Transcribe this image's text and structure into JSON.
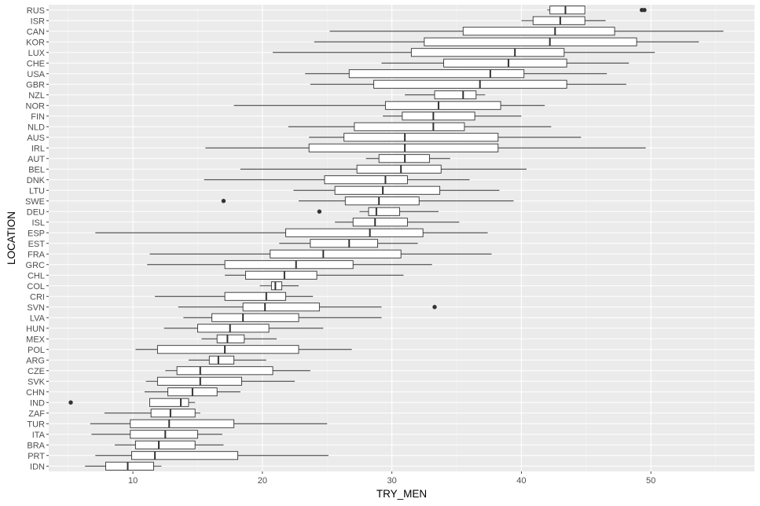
{
  "chart_data": {
    "type": "boxplot",
    "orientation": "horizontal",
    "xlabel": "TRY_MEN",
    "ylabel": "LOCATION",
    "xlim": [
      3.5,
      58
    ],
    "xticks": [
      10,
      20,
      30,
      40,
      50
    ],
    "grid": true,
    "colors": {
      "panel": "#ebebeb",
      "grid_major": "#ffffff",
      "grid_minor": "#f5f5f5",
      "box_fill": "#ffffff",
      "line": "#333333",
      "tick_text": "#4d4d4d"
    },
    "categories": [
      "RUS",
      "ISR",
      "CAN",
      "KOR",
      "LUX",
      "CHE",
      "USA",
      "GBR",
      "NZL",
      "NOR",
      "FIN",
      "NLD",
      "AUS",
      "IRL",
      "AUT",
      "BEL",
      "DNK",
      "LTU",
      "SWE",
      "DEU",
      "ISL",
      "ESP",
      "EST",
      "FRA",
      "GRC",
      "CHL",
      "COL",
      "CRI",
      "SVN",
      "LVA",
      "HUN",
      "MEX",
      "POL",
      "ARG",
      "CZE",
      "SVK",
      "CHN",
      "IND",
      "ZAF",
      "TUR",
      "ITA",
      "BRA",
      "PRT",
      "IDN"
    ],
    "boxes": [
      {
        "location": "RUS",
        "min": 42.0,
        "q1": 42.2,
        "median": 43.4,
        "q3": 44.9,
        "max": 44.9,
        "outliers": [
          49.3,
          49.5
        ]
      },
      {
        "location": "ISR",
        "min": 40.0,
        "q1": 40.9,
        "median": 43.0,
        "q3": 44.9,
        "max": 46.5,
        "outliers": []
      },
      {
        "location": "CAN",
        "min": 25.2,
        "q1": 35.5,
        "median": 42.6,
        "q3": 47.2,
        "max": 55.6,
        "outliers": []
      },
      {
        "location": "KOR",
        "min": 24.0,
        "q1": 32.5,
        "median": 42.2,
        "q3": 48.9,
        "max": 53.7,
        "outliers": []
      },
      {
        "location": "LUX",
        "min": 20.8,
        "q1": 31.5,
        "median": 39.5,
        "q3": 43.3,
        "max": 50.3,
        "outliers": []
      },
      {
        "location": "CHE",
        "min": 29.2,
        "q1": 34.0,
        "median": 39.0,
        "q3": 43.5,
        "max": 48.3,
        "outliers": []
      },
      {
        "location": "USA",
        "min": 23.3,
        "q1": 26.7,
        "median": 37.6,
        "q3": 40.2,
        "max": 46.6,
        "outliers": []
      },
      {
        "location": "GBR",
        "min": 23.7,
        "q1": 28.6,
        "median": 36.8,
        "q3": 43.5,
        "max": 48.1,
        "outliers": []
      },
      {
        "location": "NZL",
        "min": 31.0,
        "q1": 33.3,
        "median": 35.5,
        "q3": 36.5,
        "max": 37.2,
        "outliers": []
      },
      {
        "location": "NOR",
        "min": 17.8,
        "q1": 29.5,
        "median": 33.6,
        "q3": 38.4,
        "max": 41.8,
        "outliers": []
      },
      {
        "location": "FIN",
        "min": 29.3,
        "q1": 30.8,
        "median": 33.2,
        "q3": 36.4,
        "max": 40.0,
        "outliers": []
      },
      {
        "location": "NLD",
        "min": 22.0,
        "q1": 27.1,
        "median": 33.2,
        "q3": 35.6,
        "max": 42.3,
        "outliers": []
      },
      {
        "location": "AUS",
        "min": 23.6,
        "q1": 26.3,
        "median": 31.0,
        "q3": 38.2,
        "max": 44.6,
        "outliers": []
      },
      {
        "location": "IRL",
        "min": 15.6,
        "q1": 23.6,
        "median": 31.0,
        "q3": 38.2,
        "max": 49.6,
        "outliers": []
      },
      {
        "location": "AUT",
        "min": 28.0,
        "q1": 29.0,
        "median": 31.0,
        "q3": 32.9,
        "max": 34.5,
        "outliers": []
      },
      {
        "location": "BEL",
        "min": 18.3,
        "q1": 27.3,
        "median": 30.7,
        "q3": 33.8,
        "max": 40.4,
        "outliers": []
      },
      {
        "location": "DNK",
        "min": 15.5,
        "q1": 24.8,
        "median": 29.5,
        "q3": 31.2,
        "max": 36.0,
        "outliers": []
      },
      {
        "location": "LTU",
        "min": 22.4,
        "q1": 25.6,
        "median": 29.3,
        "q3": 33.7,
        "max": 38.3,
        "outliers": []
      },
      {
        "location": "SWE",
        "min": 22.8,
        "q1": 26.4,
        "median": 29.0,
        "q3": 32.1,
        "max": 39.4,
        "outliers": [
          17.0
        ]
      },
      {
        "location": "DEU",
        "min": 27.5,
        "q1": 28.2,
        "median": 28.8,
        "q3": 30.6,
        "max": 33.6,
        "outliers": [
          24.4
        ]
      },
      {
        "location": "ISL",
        "min": 25.6,
        "q1": 27.0,
        "median": 28.7,
        "q3": 31.2,
        "max": 35.2,
        "outliers": []
      },
      {
        "location": "ESP",
        "min": 7.1,
        "q1": 21.8,
        "median": 28.3,
        "q3": 32.4,
        "max": 37.4,
        "outliers": []
      },
      {
        "location": "EST",
        "min": 21.3,
        "q1": 23.7,
        "median": 26.7,
        "q3": 28.9,
        "max": 32.0,
        "outliers": []
      },
      {
        "location": "FRA",
        "min": 11.3,
        "q1": 20.6,
        "median": 24.7,
        "q3": 30.7,
        "max": 37.7,
        "outliers": []
      },
      {
        "location": "GRC",
        "min": 11.1,
        "q1": 17.1,
        "median": 22.6,
        "q3": 27.0,
        "max": 33.1,
        "outliers": []
      },
      {
        "location": "CHL",
        "min": 17.1,
        "q1": 18.7,
        "median": 21.7,
        "q3": 24.2,
        "max": 30.9,
        "outliers": []
      },
      {
        "location": "COL",
        "min": 19.8,
        "q1": 20.7,
        "median": 21.0,
        "q3": 21.5,
        "max": 22.8,
        "outliers": []
      },
      {
        "location": "CRI",
        "min": 11.7,
        "q1": 17.1,
        "median": 20.3,
        "q3": 21.8,
        "max": 23.9,
        "outliers": []
      },
      {
        "location": "SVN",
        "min": 13.5,
        "q1": 18.5,
        "median": 20.2,
        "q3": 24.4,
        "max": 29.2,
        "outliers": [
          33.3
        ]
      },
      {
        "location": "LVA",
        "min": 13.9,
        "q1": 16.1,
        "median": 18.5,
        "q3": 22.8,
        "max": 29.2,
        "outliers": []
      },
      {
        "location": "HUN",
        "min": 12.4,
        "q1": 15.0,
        "median": 17.5,
        "q3": 20.5,
        "max": 24.7,
        "outliers": []
      },
      {
        "location": "MEX",
        "min": 15.3,
        "q1": 16.5,
        "median": 17.3,
        "q3": 18.6,
        "max": 21.1,
        "outliers": []
      },
      {
        "location": "POL",
        "min": 10.2,
        "q1": 11.9,
        "median": 17.1,
        "q3": 22.8,
        "max": 26.9,
        "outliers": []
      },
      {
        "location": "ARG",
        "min": 14.3,
        "q1": 15.9,
        "median": 16.6,
        "q3": 17.8,
        "max": 20.3,
        "outliers": []
      },
      {
        "location": "CZE",
        "min": 12.5,
        "q1": 13.4,
        "median": 15.2,
        "q3": 20.8,
        "max": 23.7,
        "outliers": []
      },
      {
        "location": "SVK",
        "min": 11.0,
        "q1": 11.9,
        "median": 15.2,
        "q3": 18.4,
        "max": 22.5,
        "outliers": []
      },
      {
        "location": "CHN",
        "min": 10.9,
        "q1": 12.7,
        "median": 14.6,
        "q3": 16.5,
        "max": 18.3,
        "outliers": []
      },
      {
        "location": "IND",
        "min": 11.3,
        "q1": 11.3,
        "median": 13.7,
        "q3": 14.3,
        "max": 14.8,
        "outliers": [
          5.2
        ]
      },
      {
        "location": "ZAF",
        "min": 7.8,
        "q1": 11.4,
        "median": 12.9,
        "q3": 14.8,
        "max": 15.2,
        "outliers": []
      },
      {
        "location": "TUR",
        "min": 6.7,
        "q1": 9.8,
        "median": 12.8,
        "q3": 17.8,
        "max": 25.0,
        "outliers": []
      },
      {
        "location": "ITA",
        "min": 6.8,
        "q1": 9.8,
        "median": 12.5,
        "q3": 15.0,
        "max": 16.9,
        "outliers": []
      },
      {
        "location": "BRA",
        "min": 8.6,
        "q1": 10.2,
        "median": 12.0,
        "q3": 14.8,
        "max": 17.0,
        "outliers": []
      },
      {
        "location": "PRT",
        "min": 7.1,
        "q1": 9.9,
        "median": 11.7,
        "q3": 18.1,
        "max": 25.1,
        "outliers": []
      },
      {
        "location": "IDN",
        "min": 6.3,
        "q1": 7.9,
        "median": 9.6,
        "q3": 11.6,
        "max": 12.2,
        "outliers": []
      }
    ]
  }
}
